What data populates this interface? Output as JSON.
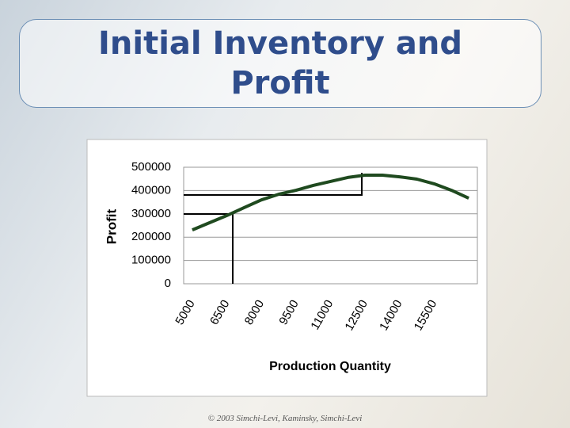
{
  "footer": "© 2003 Simchi-Levi, Kaminsky, Simchi-Levi",
  "chart_data": {
    "type": "line",
    "title": "Initial Inventory and Profit",
    "x_label": "Production Quantity",
    "y_label": "Profit",
    "categories": [
      "5000",
      null,
      "6500",
      null,
      "8000",
      null,
      "9500",
      null,
      "11000",
      null,
      "12500",
      null,
      "14000",
      null,
      "15500",
      null,
      null
    ],
    "series": [
      {
        "name": "Profit",
        "color": "#1f4a1f",
        "values": [
          231000,
          262000,
          293000,
          327000,
          360000,
          384000,
          401000,
          422000,
          439000,
          456000,
          466000,
          466000,
          459000,
          449000,
          429000,
          401000,
          367000
        ]
      }
    ],
    "ylim": [
      0,
      500000
    ],
    "yticks": [
      0,
      100000,
      200000,
      300000,
      400000,
      500000
    ],
    "grid": true
  }
}
